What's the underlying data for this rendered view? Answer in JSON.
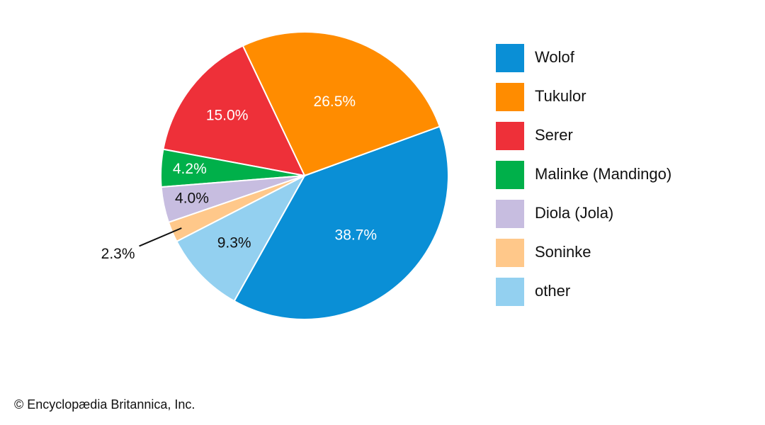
{
  "chart_data": {
    "type": "pie",
    "categories": [
      "Wolof",
      "Tukulor",
      "Serer",
      "Malinke (Mandingo)",
      "Diola (Jola)",
      "Soninke",
      "other"
    ],
    "values": [
      38.7,
      26.5,
      15.0,
      4.2,
      4.0,
      2.3,
      9.3
    ],
    "value_labels": [
      "38.7%",
      "26.5%",
      "15.0%",
      "4.2%",
      "4.0%",
      "2.3%",
      "9.3%"
    ],
    "colors": [
      "#0a8fd6",
      "#ff8c00",
      "#ee3039",
      "#00b04a",
      "#c7bde0",
      "#ffc88a",
      "#93d0f0"
    ],
    "legend": "right"
  },
  "credit": "© Encyclopædia Britannica, Inc."
}
